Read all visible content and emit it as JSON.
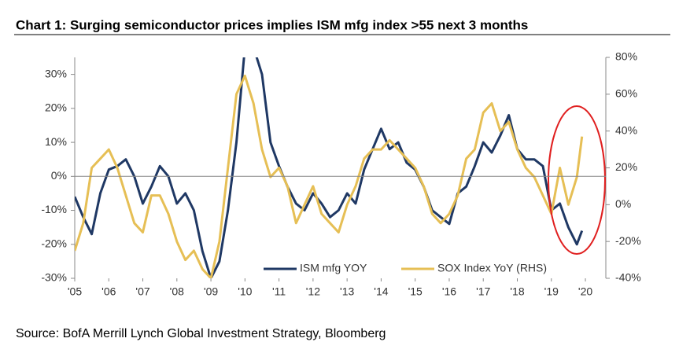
{
  "chart_data": {
    "type": "line",
    "title": "Chart 1: Surging semiconductor prices implies ISM mfg index >55 next 3 months",
    "source": "Source: BofA Merrill Lynch Global Investment Strategy, Bloomberg",
    "x": [
      2005,
      2005.25,
      2005.5,
      2005.75,
      2006,
      2006.25,
      2006.5,
      2006.75,
      2007,
      2007.25,
      2007.5,
      2007.75,
      2008,
      2008.25,
      2008.5,
      2008.75,
      2009,
      2009.25,
      2009.5,
      2009.75,
      2010,
      2010.25,
      2010.5,
      2010.75,
      2011,
      2011.25,
      2011.5,
      2011.75,
      2012,
      2012.25,
      2012.5,
      2012.75,
      2013,
      2013.25,
      2013.5,
      2013.75,
      2014,
      2014.25,
      2014.5,
      2014.75,
      2015,
      2015.25,
      2015.5,
      2015.75,
      2016,
      2016.25,
      2016.5,
      2016.75,
      2017,
      2017.25,
      2017.5,
      2017.75,
      2018,
      2018.25,
      2018.5,
      2018.75,
      2019,
      2019.25,
      2019.5,
      2019.75,
      2019.9
    ],
    "series": [
      {
        "name": "ISM mfg YOY",
        "color": "#1f3864",
        "values": [
          -6,
          -12,
          -17,
          -5,
          2,
          3,
          5,
          0,
          -8,
          -3,
          3,
          0,
          -8,
          -5,
          -10,
          -22,
          -30,
          -25,
          -10,
          10,
          38,
          38,
          30,
          10,
          3,
          -3,
          -8,
          -10,
          -5,
          -8,
          -12,
          -10,
          -5,
          -8,
          2,
          8,
          14,
          8,
          10,
          4,
          2,
          -3,
          -10,
          -12,
          -14,
          -5,
          -3,
          3,
          10,
          7,
          12,
          18,
          8,
          5,
          5,
          3,
          -10,
          -8,
          -15,
          -20,
          -16
        ]
      },
      {
        "name": "SOX Index YoY (RHS)",
        "color": "#e6bf55",
        "axis": "y2",
        "values": [
          -25,
          -10,
          20,
          25,
          30,
          20,
          5,
          -10,
          -15,
          5,
          5,
          -5,
          -20,
          -30,
          -25,
          -35,
          -40,
          -20,
          20,
          60,
          70,
          55,
          30,
          15,
          20,
          10,
          -10,
          0,
          10,
          -5,
          -10,
          -15,
          0,
          10,
          25,
          30,
          30,
          35,
          30,
          25,
          20,
          10,
          -5,
          -10,
          -5,
          5,
          25,
          30,
          50,
          55,
          40,
          45,
          30,
          20,
          15,
          5,
          -5,
          20,
          0,
          15,
          37
        ]
      }
    ],
    "xlim": [
      2005,
      2020.6
    ],
    "xticks": [
      {
        "value": 2005,
        "label": "'05"
      },
      {
        "value": 2006,
        "label": "'06"
      },
      {
        "value": 2007,
        "label": "'07"
      },
      {
        "value": 2008,
        "label": "'08"
      },
      {
        "value": 2009,
        "label": "'09"
      },
      {
        "value": 2010,
        "label": "'10"
      },
      {
        "value": 2011,
        "label": "'11"
      },
      {
        "value": 2012,
        "label": "'12"
      },
      {
        "value": 2013,
        "label": "'13"
      },
      {
        "value": 2014,
        "label": "'14"
      },
      {
        "value": 2015,
        "label": "'15"
      },
      {
        "value": 2016,
        "label": "'16"
      },
      {
        "value": 2017,
        "label": "'17"
      },
      {
        "value": 2018,
        "label": "'18"
      },
      {
        "value": 2019,
        "label": "'19"
      },
      {
        "value": 2020,
        "label": "'20"
      }
    ],
    "ylim": [
      -30,
      35
    ],
    "yticks": [
      {
        "value": -30,
        "label": "-30%"
      },
      {
        "value": -20,
        "label": "-20%"
      },
      {
        "value": -10,
        "label": "-10%"
      },
      {
        "value": 0,
        "label": "0%"
      },
      {
        "value": 10,
        "label": "10%"
      },
      {
        "value": 20,
        "label": "20%"
      },
      {
        "value": 30,
        "label": "30%"
      }
    ],
    "y2lim": [
      -40,
      80
    ],
    "y2ticks": [
      {
        "value": -40,
        "label": "-40%"
      },
      {
        "value": -20,
        "label": "-20%"
      },
      {
        "value": 0,
        "label": "0%"
      },
      {
        "value": 20,
        "label": "20%"
      },
      {
        "value": 40,
        "label": "40%"
      },
      {
        "value": 60,
        "label": "60%"
      },
      {
        "value": 80,
        "label": "80%"
      }
    ]
  }
}
